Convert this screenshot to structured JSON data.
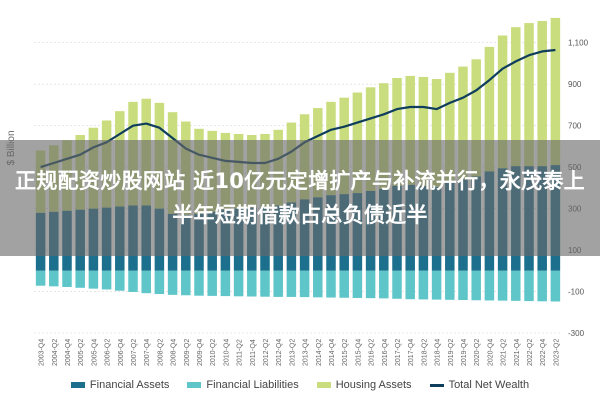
{
  "overlay": {
    "headline": "正规配资炒股网站 近10亿元定增扩产与补流并行，永茂泰上半年短期借款占总负债近半"
  },
  "chart_data": {
    "type": "bar",
    "ylabel": "$ Billion",
    "ylim": [
      -300,
      1200
    ],
    "right_ticks": [
      -300,
      -100,
      100,
      300,
      500,
      700,
      900,
      1100
    ],
    "right_tick_labels": [
      "-300",
      "-100",
      "100",
      "300",
      "500",
      "700",
      "900",
      "1,100"
    ],
    "grid": true,
    "legend_position": "bottom",
    "categories": [
      "2003-Q4",
      "2004-Q2",
      "2004-Q4",
      "2005-Q2",
      "2005-Q4",
      "2006-Q2",
      "2006-Q4",
      "2007-Q2",
      "2007-Q4",
      "2008-Q2",
      "2008-Q4",
      "2009-Q2",
      "2009-Q4",
      "2010-Q2",
      "2010-Q4",
      "2011-Q2",
      "2011-Q4",
      "2012-Q2",
      "2012-Q4",
      "2013-Q2",
      "2013-Q4",
      "2014-Q2",
      "2014-Q4",
      "2015-Q2",
      "2015-Q4",
      "2016-Q2",
      "2016-Q4",
      "2017-Q2",
      "2017-Q4",
      "2018-Q2",
      "2018-Q4",
      "2019-Q2",
      "2019-Q4",
      "2020-Q2",
      "2020-Q4",
      "2021-Q2",
      "2021-Q4",
      "2022-Q2",
      "2022-Q4",
      "2023-Q2"
    ],
    "colors": {
      "financial_assets": "#1d6f8e",
      "financial_liabilities": "#5ec6c9",
      "housing_assets": "#c9dd7e",
      "net_wealth": "#0f3d5c"
    },
    "series": [
      {
        "name": "Financial Assets",
        "key": "financial_assets",
        "values": [
          280,
          285,
          290,
          295,
          300,
          305,
          310,
          315,
          315,
          300,
          275,
          270,
          275,
          285,
          295,
          300,
          305,
          305,
          315,
          330,
          345,
          355,
          365,
          370,
          375,
          385,
          395,
          410,
          415,
          410,
          405,
          425,
          440,
          455,
          480,
          495,
          505,
          505,
          505,
          510
        ]
      },
      {
        "name": "Financial Liabilities",
        "key": "financial_liabilities",
        "values": [
          -72,
          -75,
          -78,
          -82,
          -86,
          -90,
          -96,
          -102,
          -108,
          -112,
          -116,
          -118,
          -120,
          -121,
          -122,
          -123,
          -124,
          -125,
          -126,
          -126,
          -127,
          -128,
          -129,
          -130,
          -131,
          -132,
          -133,
          -135,
          -137,
          -138,
          -139,
          -140,
          -141,
          -142,
          -143,
          -144,
          -145,
          -146,
          -147,
          -148
        ]
      },
      {
        "name": "Housing Assets",
        "key": "housing_assets",
        "values": [
          300,
          320,
          340,
          360,
          390,
          420,
          460,
          500,
          515,
          510,
          490,
          450,
          410,
          390,
          370,
          360,
          350,
          355,
          365,
          385,
          410,
          430,
          450,
          465,
          485,
          500,
          510,
          520,
          525,
          525,
          520,
          530,
          545,
          565,
          600,
          640,
          670,
          690,
          700,
          710
        ]
      },
      {
        "name": "Total Net Wealth",
        "key": "net_wealth",
        "values": [
          500,
          520,
          540,
          560,
          595,
          620,
          660,
          700,
          710,
          690,
          640,
          590,
          560,
          545,
          530,
          525,
          520,
          520,
          540,
          575,
          620,
          650,
          680,
          695,
          715,
          735,
          755,
          780,
          790,
          790,
          780,
          810,
          835,
          870,
          920,
          975,
          1010,
          1040,
          1058,
          1065
        ]
      }
    ]
  }
}
